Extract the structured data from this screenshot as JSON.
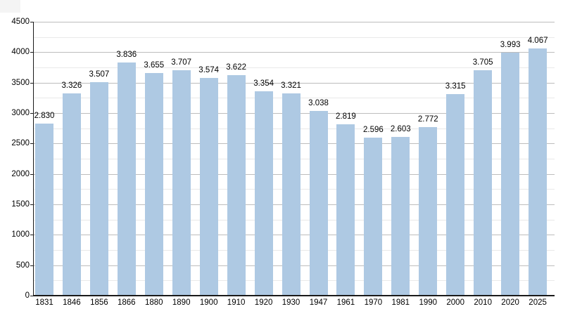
{
  "chart_data": {
    "type": "bar",
    "title": "",
    "xlabel": "",
    "ylabel": "",
    "categories": [
      "1831",
      "1846",
      "1856",
      "1866",
      "1880",
      "1890",
      "1900",
      "1910",
      "1920",
      "1930",
      "1947",
      "1961",
      "1970",
      "1981",
      "1990",
      "2000",
      "2010",
      "2020",
      "2025"
    ],
    "values": [
      2830,
      3326,
      3507,
      3836,
      3655,
      3707,
      3574,
      3622,
      3354,
      3321,
      3038,
      2819,
      2596,
      2603,
      2772,
      3315,
      3705,
      3993,
      4067
    ],
    "value_labels": [
      "2.830",
      "3.326",
      "3.507",
      "3.836",
      "3.655",
      "3.707",
      "3.574",
      "3.622",
      "3.354",
      "3.321",
      "3.038",
      "2.819",
      "2.596",
      "2.603",
      "2.772",
      "3.315",
      "3.705",
      "3.993",
      "4.067"
    ],
    "ylim": [
      0,
      4500
    ],
    "y_major_step": 500,
    "y_minor_step": 250,
    "y_tick_labels": [
      "0",
      "500",
      "1000",
      "1500",
      "2000",
      "2500",
      "3000",
      "3500",
      "4000",
      "4500"
    ],
    "grid": true,
    "legend": false,
    "colors": {
      "bar": "#aec9e3",
      "grid_major": "#bdbdbd",
      "grid_minor": "#e9e9e9",
      "axis": "#1a1a1a",
      "text": "#000000",
      "background": "#ffffff"
    }
  }
}
